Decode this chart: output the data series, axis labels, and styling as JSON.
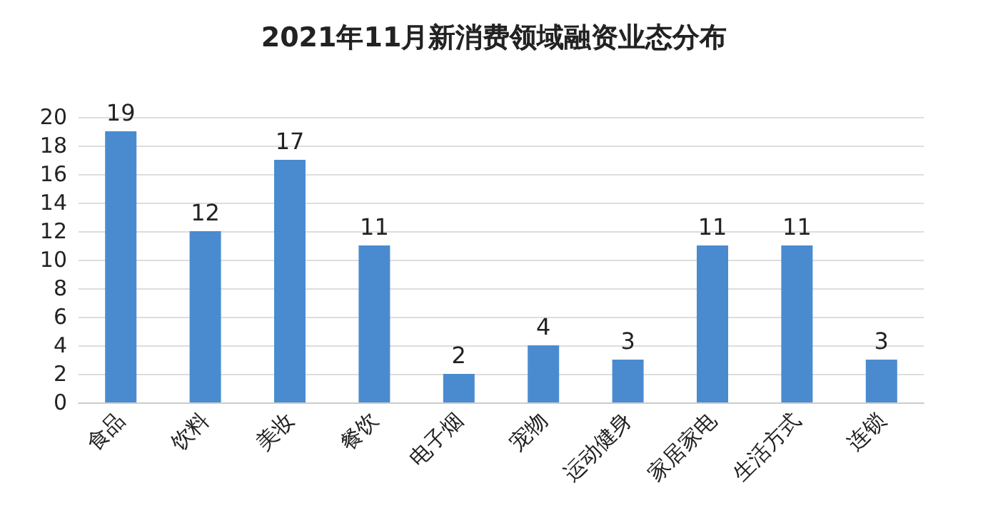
{
  "chart_data": {
    "type": "bar",
    "title": "2021年11月新消费领域融资业态分布",
    "categories": [
      "食品",
      "饮料",
      "美妆",
      "餐饮",
      "电子烟",
      "宠物",
      "运动健身",
      "家居家电",
      "生活方式",
      "连锁"
    ],
    "values": [
      19,
      12,
      17,
      11,
      2,
      4,
      3,
      11,
      11,
      3
    ],
    "color": "#4a8bd0",
    "ylim": [
      0,
      20
    ],
    "yticks": [
      0,
      2,
      4,
      6,
      8,
      10,
      12,
      14,
      16,
      18,
      20
    ],
    "grid": "y",
    "data_labels": true
  }
}
